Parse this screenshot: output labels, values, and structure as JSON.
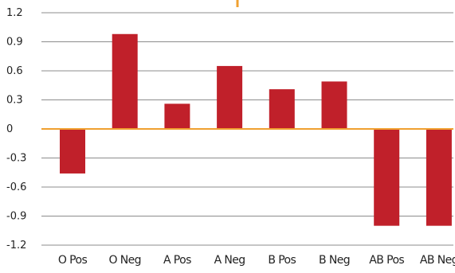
{
  "chart_data": {
    "type": "bar",
    "title": "",
    "xlabel": "",
    "ylabel": "",
    "categories": [
      "O Pos",
      "O Neg",
      "A Pos",
      "A Neg",
      "B Pos",
      "B Neg",
      "AB Pos",
      "AB Neg"
    ],
    "values": [
      -0.46,
      0.98,
      0.26,
      0.65,
      0.41,
      0.49,
      -1.0,
      -1.0
    ],
    "ylim": [
      -1.2,
      1.2
    ],
    "yticks": [
      1.2,
      0.9,
      0.6,
      0.3,
      0,
      -0.3,
      -0.6,
      -0.9,
      -1.2
    ],
    "ytick_labels": [
      "1.2",
      "0.9",
      "0.6",
      "0.3",
      "0",
      "-0.3",
      "-0.6",
      "-0.9",
      "-1.2"
    ],
    "grid": true,
    "legend": "none",
    "colors": {
      "bar": "#c0202a",
      "zero_line": "#f0a030",
      "grid": "#8c8c8c"
    }
  }
}
